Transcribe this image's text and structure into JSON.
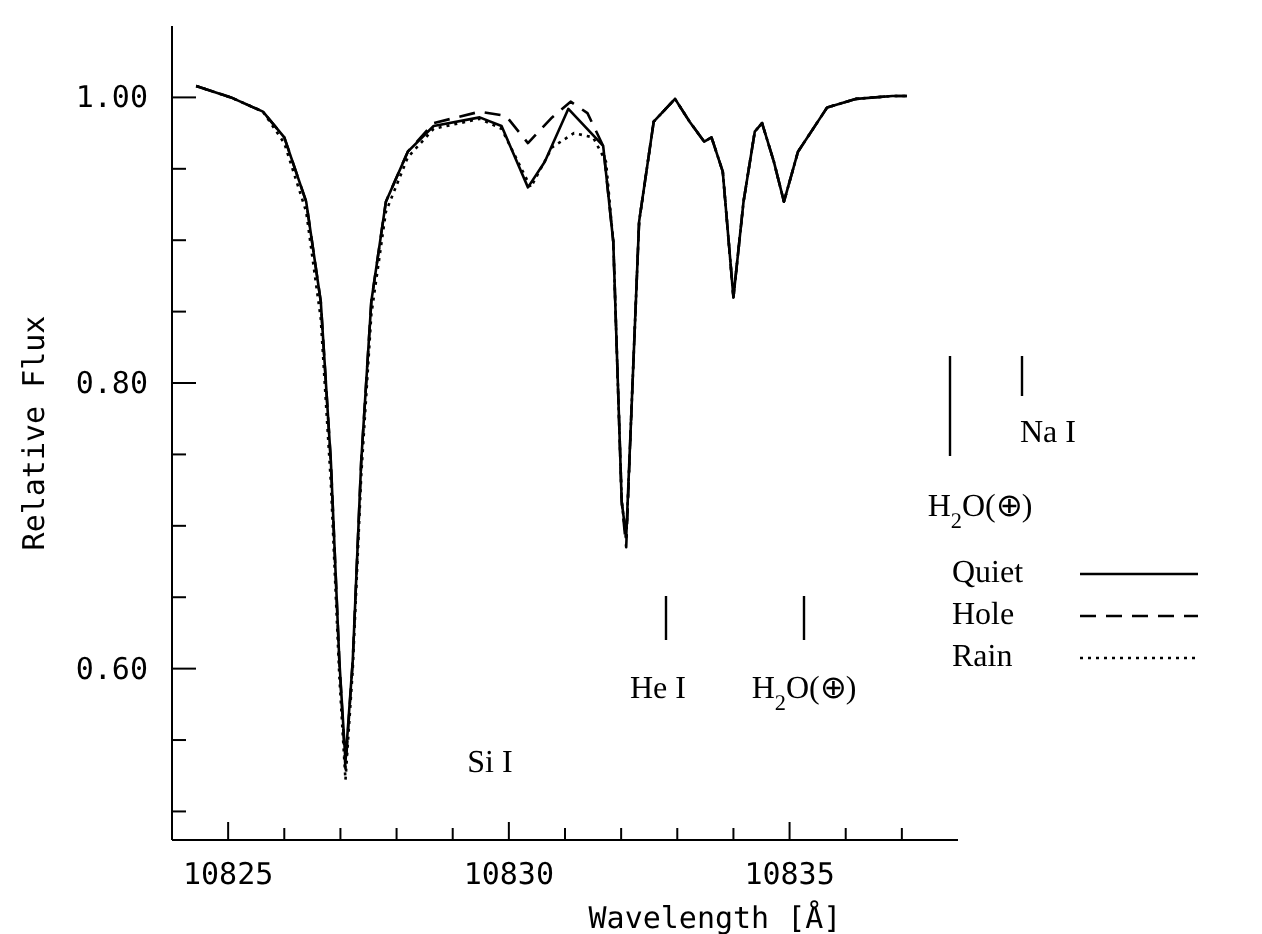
{
  "chart_data": {
    "type": "line",
    "xlabel": "Wavelength [Å]",
    "ylabel": "Relative Flux",
    "xlim": [
      10824,
      10838
    ],
    "ylim": [
      0.48,
      1.05
    ],
    "xticks": [
      10825,
      {
        "value": 10826,
        "label": null
      },
      {
        "value": 10827,
        "label": null
      },
      {
        "value": 10828,
        "label": null
      },
      {
        "value": 10829,
        "label": null
      },
      10830,
      {
        "value": 10831,
        "label": null
      },
      {
        "value": 10832,
        "label": null
      },
      {
        "value": 10833,
        "label": null
      },
      {
        "value": 10834,
        "label": null
      },
      10835,
      {
        "value": 10836,
        "label": null
      },
      {
        "value": 10837,
        "label": null
      }
    ],
    "yticks": [
      {
        "value": 0.5,
        "label": null
      },
      {
        "value": 0.55,
        "label": null
      },
      {
        "value": 0.6,
        "label": "0.60"
      },
      {
        "value": 0.65,
        "label": null
      },
      {
        "value": 0.7,
        "label": null
      },
      {
        "value": 0.75,
        "label": null
      },
      {
        "value": 0.8,
        "label": "0.80"
      },
      {
        "value": 0.85,
        "label": null
      },
      {
        "value": 0.9,
        "label": null
      },
      {
        "value": 0.95,
        "label": null
      },
      {
        "value": 1,
        "label": "1.00"
      }
    ],
    "grid": false,
    "legend": "bottom right",
    "series": [
      {
        "name": "Quiet",
        "color": "#000000",
        "line_style": "solid",
        "x": [
          10824.43,
          10825.05,
          10825.62,
          10826.0,
          10826.39,
          10826.65,
          10826.83,
          10826.98,
          10827.09,
          10827.22,
          10827.37,
          10827.55,
          10827.81,
          10828.2,
          10828.66,
          10829.48,
          10829.87,
          10830.34,
          10830.64,
          10831.06,
          10831.68,
          10831.86,
          10832.01,
          10832.09,
          10832.19,
          10832.32,
          10832.58,
          10832.96,
          10833.22,
          10833.48,
          10833.61,
          10833.81,
          10834.0,
          10834.18,
          10834.38,
          10834.51,
          10834.72,
          10834.9,
          10835.15,
          10835.67,
          10836.19,
          10836.83,
          10837.09
        ],
        "values": [
          1.008,
          1.0,
          0.99,
          0.972,
          0.927,
          0.857,
          0.745,
          0.606,
          0.535,
          0.606,
          0.745,
          0.857,
          0.927,
          0.962,
          0.98,
          0.986,
          0.98,
          0.937,
          0.955,
          0.992,
          0.966,
          0.899,
          0.717,
          0.692,
          0.787,
          0.913,
          0.983,
          0.999,
          0.983,
          0.969,
          0.972,
          0.948,
          0.86,
          0.927,
          0.976,
          0.982,
          0.955,
          0.927,
          0.962,
          0.993,
          0.999,
          1.001,
          1.001
        ]
      },
      {
        "name": "Hole",
        "color": "#000000",
        "line_style": "dashed",
        "x": [
          10824.43,
          10825.05,
          10825.62,
          10826.0,
          10826.39,
          10826.65,
          10826.83,
          10826.98,
          10827.09,
          10827.22,
          10827.37,
          10827.55,
          10827.81,
          10828.2,
          10828.66,
          10829.48,
          10829.95,
          10830.34,
          10830.77,
          10831.1,
          10831.4,
          10831.68,
          10831.86,
          10832.01,
          10832.09,
          10832.19,
          10832.32,
          10832.58,
          10832.96,
          10833.22,
          10833.48,
          10833.61,
          10833.81,
          10834.0,
          10834.18,
          10834.38,
          10834.51,
          10834.72,
          10834.9,
          10835.15,
          10835.67,
          10836.19,
          10836.83,
          10837.09
        ],
        "values": [
          1.008,
          1.0,
          0.99,
          0.972,
          0.927,
          0.857,
          0.745,
          0.606,
          0.53,
          0.606,
          0.745,
          0.857,
          0.927,
          0.962,
          0.982,
          0.99,
          0.987,
          0.968,
          0.986,
          0.997,
          0.989,
          0.966,
          0.899,
          0.717,
          0.685,
          0.787,
          0.913,
          0.983,
          0.999,
          0.983,
          0.969,
          0.972,
          0.948,
          0.86,
          0.927,
          0.976,
          0.982,
          0.955,
          0.927,
          0.962,
          0.993,
          0.999,
          1.001,
          1.001
        ]
      },
      {
        "name": "Rain",
        "color": "#000000",
        "line_style": "dotted",
        "x": [
          10824.43,
          10825.05,
          10825.62,
          10826.0,
          10826.39,
          10826.65,
          10826.83,
          10826.98,
          10827.09,
          10827.22,
          10827.37,
          10827.55,
          10827.81,
          10828.2,
          10828.66,
          10829.48,
          10829.87,
          10830.39,
          10830.77,
          10831.16,
          10831.5,
          10831.73,
          10831.86,
          10832.01,
          10832.09,
          10832.19,
          10832.32,
          10832.58,
          10832.96,
          10833.22,
          10833.48,
          10833.61,
          10833.81,
          10834.0,
          10834.18,
          10834.38,
          10834.51,
          10834.72,
          10834.9,
          10835.15,
          10835.67,
          10836.19,
          10836.83,
          10837.09
        ],
        "values": [
          1.008,
          1.0,
          0.99,
          0.968,
          0.92,
          0.845,
          0.73,
          0.595,
          0.522,
          0.6,
          0.735,
          0.848,
          0.92,
          0.958,
          0.978,
          0.985,
          0.978,
          0.937,
          0.965,
          0.975,
          0.972,
          0.955,
          0.899,
          0.717,
          0.69,
          0.787,
          0.913,
          0.983,
          0.999,
          0.983,
          0.969,
          0.972,
          0.948,
          0.86,
          0.927,
          0.976,
          0.982,
          0.955,
          0.927,
          0.962,
          0.993,
          0.999,
          1.001,
          1.001
        ]
      }
    ],
    "annotations": [
      "Si I",
      "He I",
      "H$_{2}$O(⊕)",
      "H$_{2}$O(⊕)",
      "Na I"
    ]
  }
}
